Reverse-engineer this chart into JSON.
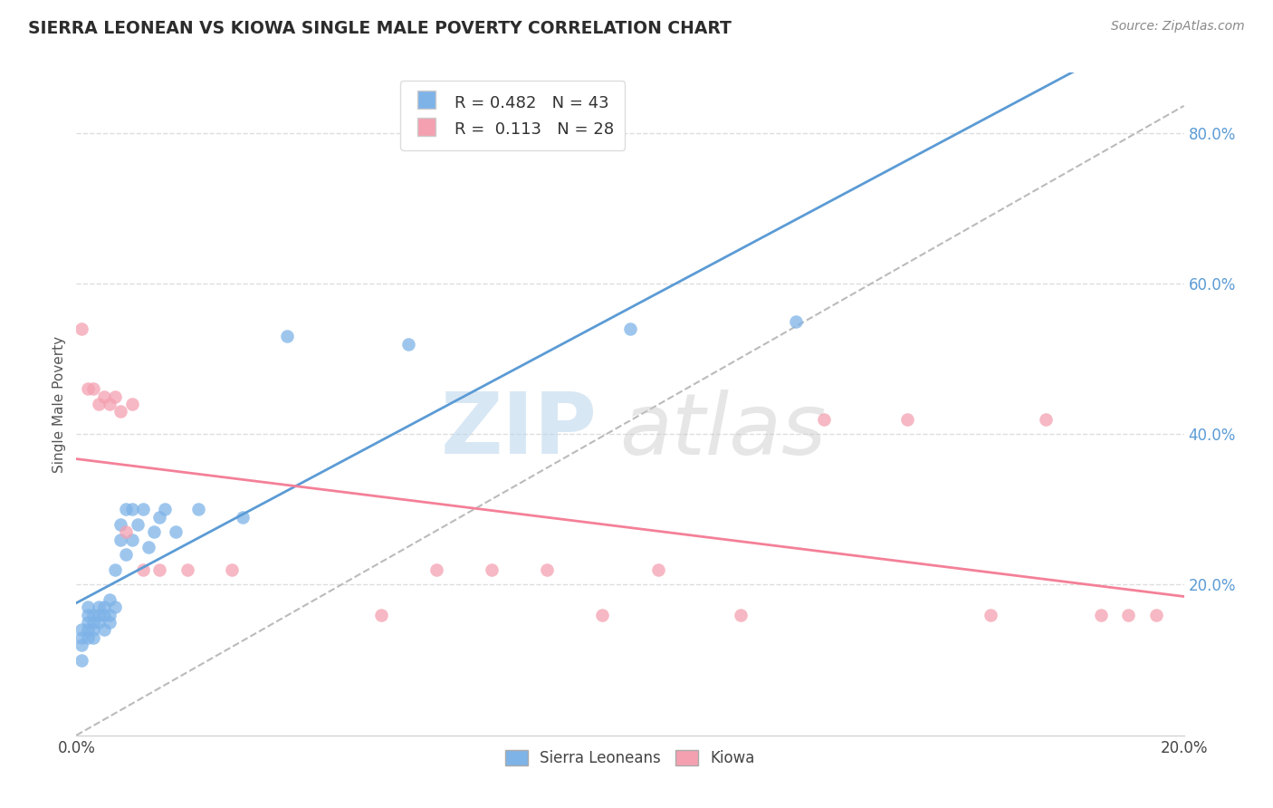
{
  "title": "SIERRA LEONEAN VS KIOWA SINGLE MALE POVERTY CORRELATION CHART",
  "source_text": "Source: ZipAtlas.com",
  "ylabel": "Single Male Poverty",
  "xlim": [
    0.0,
    0.2
  ],
  "ylim": [
    0.0,
    0.88
  ],
  "right_yticks": [
    0.2,
    0.4,
    0.6,
    0.8
  ],
  "right_yticklabels": [
    "20.0%",
    "40.0%",
    "60.0%",
    "80.0%"
  ],
  "r_sierra": 0.482,
  "n_sierra": 43,
  "r_kiowa": 0.113,
  "n_kiowa": 28,
  "color_sierra": "#7EB3E8",
  "color_kiowa": "#F4A0B0",
  "color_line_sierra": "#5B9BD5",
  "color_line_kiowa": "#F48098",
  "color_diag": "#BBBBBB",
  "sierra_x": [
    0.001,
    0.001,
    0.001,
    0.001,
    0.002,
    0.002,
    0.002,
    0.002,
    0.002,
    0.003,
    0.003,
    0.003,
    0.003,
    0.004,
    0.004,
    0.004,
    0.005,
    0.005,
    0.005,
    0.006,
    0.006,
    0.006,
    0.007,
    0.007,
    0.008,
    0.008,
    0.009,
    0.009,
    0.01,
    0.01,
    0.011,
    0.012,
    0.013,
    0.014,
    0.015,
    0.016,
    0.018,
    0.022,
    0.03,
    0.038,
    0.06,
    0.1,
    0.13
  ],
  "sierra_y": [
    0.12,
    0.13,
    0.14,
    0.1,
    0.13,
    0.14,
    0.15,
    0.16,
    0.17,
    0.14,
    0.15,
    0.16,
    0.13,
    0.15,
    0.16,
    0.17,
    0.14,
    0.16,
    0.17,
    0.15,
    0.16,
    0.18,
    0.17,
    0.22,
    0.26,
    0.28,
    0.24,
    0.3,
    0.26,
    0.3,
    0.28,
    0.3,
    0.25,
    0.27,
    0.29,
    0.3,
    0.27,
    0.3,
    0.29,
    0.53,
    0.52,
    0.54,
    0.55
  ],
  "kiowa_x": [
    0.001,
    0.002,
    0.003,
    0.004,
    0.005,
    0.006,
    0.007,
    0.008,
    0.009,
    0.01,
    0.012,
    0.015,
    0.02,
    0.028,
    0.055,
    0.065,
    0.075,
    0.085,
    0.095,
    0.105,
    0.12,
    0.135,
    0.15,
    0.165,
    0.175,
    0.185,
    0.19,
    0.195
  ],
  "kiowa_y": [
    0.54,
    0.46,
    0.46,
    0.44,
    0.45,
    0.44,
    0.45,
    0.43,
    0.27,
    0.44,
    0.22,
    0.22,
    0.22,
    0.22,
    0.16,
    0.22,
    0.22,
    0.22,
    0.16,
    0.22,
    0.16,
    0.42,
    0.42,
    0.16,
    0.42,
    0.16,
    0.16,
    0.16
  ],
  "watermark_line1": "ZIP",
  "watermark_line2": "atlas",
  "background_color": "#FFFFFF",
  "grid_color": "#DDDDDD",
  "legend_label_1": "R = 0.482   N = 43",
  "legend_label_2": "R =  0.113   N = 28",
  "bottom_legend_1": "Sierra Leoneans",
  "bottom_legend_2": "Kiowa"
}
